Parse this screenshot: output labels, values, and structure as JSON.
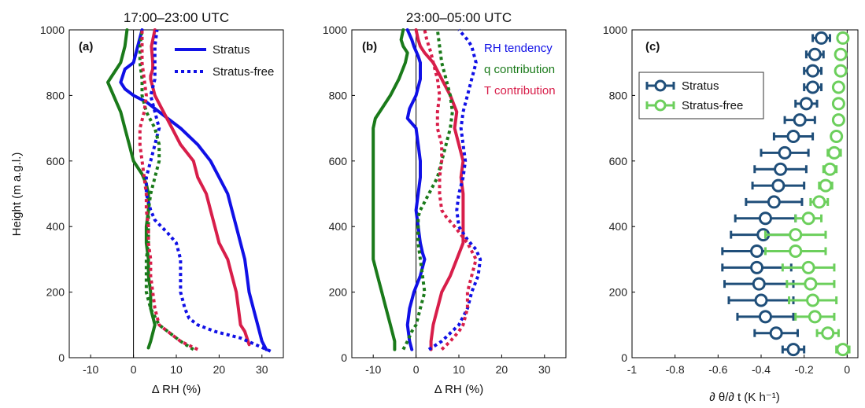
{
  "colors": {
    "rh": "#1010e6",
    "q": "#1a7a1a",
    "t": "#d81e4a",
    "stratus_dark": "#1f4e79",
    "stratus_free_light": "#6ccf5c",
    "zero_line": "#000000"
  },
  "shared": {
    "ylabel": "Height (m a.g.l.)",
    "ylim": [
      0,
      1000
    ],
    "yticks": [
      "0",
      "200",
      "400",
      "600",
      "800",
      "1000"
    ]
  },
  "chart_data": [
    {
      "type": "line",
      "panel_label": "(a)",
      "title": "17:00–23:00 UTC",
      "xlabel": "Δ RH (%)",
      "xlim": [
        -15,
        35
      ],
      "xticks": [
        "-10",
        "0",
        "10",
        "20",
        "30"
      ],
      "ylim": [
        0,
        1000
      ],
      "legend": {
        "placement": "top-right",
        "entries": [
          "Stratus",
          "Stratus-free"
        ]
      },
      "series": [
        {
          "name": "",
          "variable": "rh",
          "case": "stratus",
          "style": "solid",
          "x": [
            31,
            30,
            29,
            28,
            27,
            26.5,
            26,
            25,
            24,
            23,
            22,
            20,
            18,
            15,
            11,
            6,
            3,
            0,
            -2,
            -3,
            -2,
            0,
            1,
            2
          ],
          "y": [
            25,
            50,
            100,
            150,
            200,
            250,
            300,
            350,
            400,
            450,
            500,
            550,
            600,
            650,
            700,
            750,
            780,
            800,
            820,
            840,
            880,
            900,
            950,
            1000
          ]
        },
        {
          "name": "",
          "variable": "q",
          "case": "stratus",
          "style": "solid",
          "x": [
            3.5,
            4,
            5,
            4,
            4,
            3.5,
            3.5,
            3,
            3,
            3.5,
            3.5,
            3,
            2,
            0,
            -1,
            -2,
            -3,
            -4,
            -5,
            -6,
            -5,
            -3,
            -2,
            -1.5
          ],
          "y": [
            30,
            50,
            100,
            150,
            200,
            250,
            300,
            350,
            400,
            450,
            500,
            530,
            560,
            600,
            650,
            700,
            750,
            780,
            810,
            840,
            860,
            900,
            950,
            1000
          ]
        },
        {
          "name": "",
          "variable": "t",
          "case": "stratus",
          "style": "solid",
          "x": [
            27,
            26,
            25,
            24.5,
            24,
            23,
            22,
            20,
            19,
            18,
            17,
            15,
            14,
            11,
            9,
            7,
            5,
            4,
            4,
            4.5,
            4.5,
            4.2,
            5
          ],
          "y": [
            40,
            80,
            100,
            150,
            200,
            250,
            300,
            350,
            400,
            450,
            500,
            550,
            600,
            650,
            700,
            750,
            800,
            850,
            860,
            880,
            900,
            950,
            1000
          ]
        },
        {
          "name": "",
          "variable": "rh",
          "case": "stratus_free",
          "style": "dotted",
          "x": [
            32,
            25,
            19,
            15,
            13,
            12,
            11,
            11,
            11,
            10,
            8,
            5,
            4,
            3,
            3,
            4,
            5,
            6,
            5,
            4,
            5,
            5,
            5,
            5.5
          ],
          "y": [
            20,
            60,
            80,
            100,
            120,
            150,
            200,
            250,
            300,
            350,
            380,
            420,
            450,
            500,
            550,
            600,
            650,
            700,
            750,
            800,
            850,
            900,
            950,
            1000
          ]
        },
        {
          "name": "",
          "variable": "q",
          "case": "stratus_free",
          "style": "dotted",
          "x": [
            14,
            11,
            8,
            6,
            4,
            3,
            3,
            3,
            3.5,
            3.5,
            3.5,
            4,
            5,
            6,
            6,
            5,
            3,
            2,
            2,
            1.5,
            1.5,
            2
          ],
          "y": [
            25,
            50,
            80,
            100,
            150,
            200,
            250,
            300,
            350,
            400,
            450,
            500,
            550,
            600,
            650,
            700,
            750,
            800,
            850,
            900,
            950,
            1000
          ]
        },
        {
          "name": "",
          "variable": "t",
          "case": "stratus_free",
          "style": "dotted",
          "x": [
            15,
            11,
            8,
            6,
            5,
            4.5,
            4,
            4,
            3.5,
            3.5,
            3,
            3,
            2.5,
            2,
            1.5,
            1.5,
            2.5,
            3,
            2.5,
            2,
            2
          ],
          "y": [
            25,
            50,
            80,
            100,
            150,
            200,
            250,
            300,
            350,
            400,
            450,
            500,
            550,
            600,
            650,
            700,
            750,
            800,
            850,
            900,
            1000
          ]
        }
      ]
    },
    {
      "type": "line",
      "panel_label": "(b)",
      "title": "23:00–05:00 UTC",
      "xlabel": "Δ RH (%)",
      "xlim": [
        -15,
        35
      ],
      "xticks": [
        "-10",
        "0",
        "10",
        "20",
        "30"
      ],
      "ylim": [
        0,
        1000
      ],
      "legend": {
        "placement": "top-right",
        "entries": [
          "RH tendency",
          "q contribution",
          "T contribution"
        ]
      },
      "series": [
        {
          "name": "RH tendency",
          "variable": "rh",
          "case": "stratus",
          "style": "solid",
          "x": [
            -1,
            -1.5,
            -2,
            -1.5,
            -0.5,
            1,
            2,
            1.5,
            1,
            0.5,
            0,
            0.5,
            1,
            1,
            0.5,
            0,
            -2,
            -1.5,
            0,
            1,
            1,
            0.5,
            -0.5,
            -1,
            -2
          ],
          "y": [
            25,
            50,
            100,
            150,
            200,
            250,
            300,
            320,
            350,
            400,
            450,
            500,
            550,
            600,
            650,
            700,
            730,
            760,
            800,
            850,
            900,
            920,
            950,
            970,
            1000
          ]
        },
        {
          "name": "q contribution",
          "variable": "q",
          "case": "stratus",
          "style": "solid",
          "x": [
            -5,
            -5,
            -6,
            -7,
            -8,
            -9,
            -10,
            -10,
            -10,
            -10,
            -10,
            -10,
            -10,
            -10,
            -10,
            -9.5,
            -8,
            -6,
            -4,
            -2.5,
            -2,
            -3,
            -3.5,
            -3
          ],
          "y": [
            25,
            50,
            100,
            150,
            200,
            250,
            300,
            350,
            400,
            450,
            500,
            550,
            600,
            650,
            700,
            730,
            760,
            800,
            850,
            900,
            930,
            950,
            970,
            1000
          ]
        },
        {
          "name": "T contribution",
          "variable": "t",
          "case": "stratus",
          "style": "solid",
          "x": [
            3.5,
            3.5,
            4,
            5,
            6,
            8,
            9.5,
            11,
            11,
            11,
            11,
            10.5,
            11,
            10,
            9,
            9.5,
            8,
            6,
            4,
            2,
            1,
            0.5,
            0
          ],
          "y": [
            25,
            50,
            100,
            150,
            200,
            250,
            300,
            350,
            400,
            450,
            500,
            550,
            600,
            650,
            700,
            750,
            800,
            850,
            900,
            930,
            950,
            970,
            1000
          ]
        },
        {
          "name": "",
          "variable": "rh",
          "case": "stratus_free",
          "style": "dotted",
          "x": [
            3,
            6,
            10,
            12,
            13,
            14.5,
            15,
            14,
            12,
            10,
            9.5,
            10,
            11,
            11.5,
            11,
            10.5,
            11,
            12,
            13,
            14,
            13,
            12,
            10
          ],
          "y": [
            25,
            50,
            100,
            150,
            200,
            250,
            300,
            330,
            360,
            400,
            450,
            500,
            550,
            600,
            650,
            700,
            750,
            800,
            850,
            900,
            950,
            970,
            1000
          ]
        },
        {
          "name": "",
          "variable": "q",
          "case": "stratus_free",
          "style": "dotted",
          "x": [
            -3,
            -2,
            -1,
            0,
            1,
            2,
            1.5,
            1,
            0.5,
            0.5,
            0.5,
            1,
            3,
            5,
            6,
            7,
            8,
            8.5,
            8,
            7,
            6,
            5
          ],
          "y": [
            25,
            50,
            80,
            100,
            150,
            200,
            250,
            300,
            350,
            400,
            430,
            450,
            500,
            550,
            600,
            650,
            700,
            750,
            800,
            850,
            900,
            1000
          ]
        },
        {
          "name": "",
          "variable": "t",
          "case": "stratus_free",
          "style": "dotted",
          "x": [
            6,
            8,
            10,
            11,
            12,
            12,
            13,
            14,
            12,
            9,
            7,
            6,
            5.5,
            5.5,
            6,
            6,
            5,
            5,
            5.5,
            5,
            4,
            3.5,
            2.5,
            2
          ],
          "y": [
            25,
            50,
            80,
            100,
            150,
            200,
            250,
            300,
            350,
            400,
            430,
            450,
            500,
            550,
            600,
            650,
            700,
            750,
            800,
            850,
            900,
            930,
            970,
            1000
          ]
        }
      ]
    },
    {
      "type": "scatter",
      "panel_label": "(c)",
      "xlabel": "∂ θ/∂ t (K h⁻¹)",
      "xlim": [
        -1,
        0.05
      ],
      "xticks": [
        "-1",
        "-0.8",
        "-0.6",
        "-0.4",
        "-0.2",
        "0"
      ],
      "ylim": [
        0,
        1000
      ],
      "legend": {
        "placement": "top-left",
        "entries": [
          "Stratus",
          "Stratus-free"
        ]
      },
      "series": [
        {
          "name": "Stratus",
          "y": [
            25,
            75,
            125,
            175,
            225,
            275,
            325,
            375,
            425,
            475,
            525,
            575,
            625,
            675,
            725,
            775,
            825,
            875,
            925,
            975
          ],
          "x": [
            -0.25,
            -0.33,
            -0.38,
            -0.4,
            -0.41,
            -0.42,
            -0.42,
            -0.39,
            -0.38,
            -0.34,
            -0.32,
            -0.31,
            -0.29,
            -0.25,
            -0.22,
            -0.19,
            -0.16,
            -0.16,
            -0.15,
            -0.12
          ],
          "err": [
            0.05,
            0.1,
            0.13,
            0.15,
            0.16,
            0.16,
            0.16,
            0.15,
            0.14,
            0.13,
            0.12,
            0.12,
            0.11,
            0.09,
            0.07,
            0.05,
            0.04,
            0.04,
            0.04,
            0.04
          ]
        },
        {
          "name": "Stratus-free",
          "y": [
            25,
            75,
            125,
            175,
            225,
            275,
            325,
            375,
            425,
            475,
            525,
            575,
            625,
            675,
            725,
            775,
            825,
            875,
            925,
            975
          ],
          "x": [
            -0.02,
            -0.09,
            -0.15,
            -0.16,
            -0.17,
            -0.18,
            -0.24,
            -0.24,
            -0.18,
            -0.13,
            -0.1,
            -0.08,
            -0.06,
            -0.05,
            -0.04,
            -0.04,
            -0.04,
            -0.03,
            -0.03,
            -0.02
          ],
          "err": [
            0.03,
            0.05,
            0.09,
            0.11,
            0.11,
            0.12,
            0.14,
            0.14,
            0.06,
            0.04,
            0.03,
            0.03,
            0.03,
            0.02,
            0.02,
            0.02,
            0.02,
            0.02,
            0.02,
            0.02
          ]
        }
      ]
    }
  ]
}
